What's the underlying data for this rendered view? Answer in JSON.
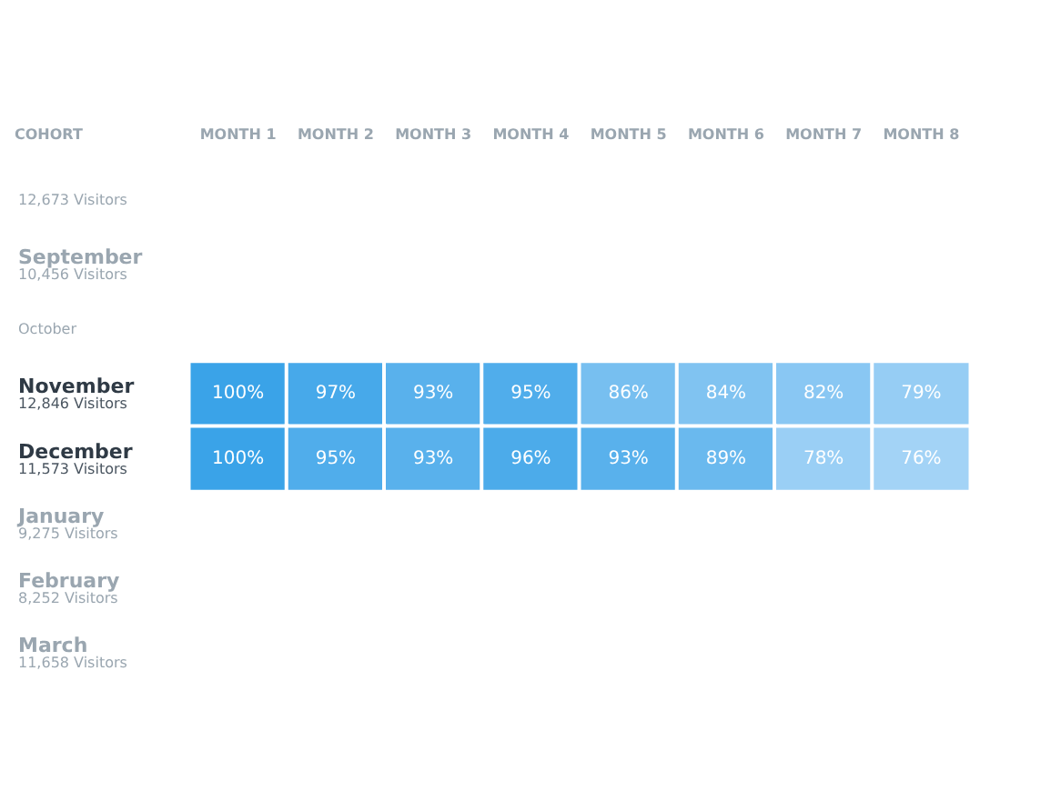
{
  "chart_data": {
    "type": "heatmap",
    "ylabel": "COHORT",
    "categories": [
      "MONTH 1",
      "MONTH 2",
      "MONTH 3",
      "MONTH 4",
      "MONTH 5",
      "MONTH 6",
      "MONTH 7",
      "MONTH 8"
    ],
    "y_categories": [
      "12,673 Visitors",
      "September\n10,456 Visitors",
      "October",
      "November\n12,846 Visitors",
      "December\n11,573 Visitors",
      "January\n9,275 Visitors",
      "February\n8,252 Visitors",
      "March\n11,658 Visitors"
    ],
    "cells": [
      [
        null,
        null,
        null,
        null,
        null,
        null,
        null,
        null
      ],
      [
        null,
        null,
        null,
        null,
        null,
        null,
        null,
        null
      ],
      [
        null,
        null,
        null,
        null,
        null,
        null,
        null,
        null
      ],
      [
        100,
        97,
        93,
        95,
        86,
        84,
        82,
        79
      ],
      [
        100,
        95,
        93,
        96,
        93,
        89,
        78,
        76
      ],
      [
        null,
        null,
        null,
        null,
        null,
        null,
        null,
        null
      ],
      [
        null,
        null,
        null,
        null,
        null,
        null,
        null,
        null
      ],
      [
        null,
        null,
        null,
        null,
        null,
        null,
        null,
        null
      ]
    ],
    "cell_labels": [
      [
        null,
        null,
        null,
        null,
        null,
        null,
        null,
        null
      ],
      [
        null,
        null,
        null,
        null,
        null,
        null,
        null,
        null
      ],
      [
        null,
        null,
        null,
        null,
        null,
        null,
        null,
        null
      ],
      [
        "100%",
        "97%",
        "93%",
        "95%",
        "86%",
        "84%",
        "82%",
        "79%"
      ],
      [
        "100%",
        "95%",
        "93%",
        "96%",
        "93%",
        "89%",
        "78%",
        "76%"
      ],
      [
        null,
        null,
        null,
        null,
        null,
        null,
        null,
        null
      ],
      [
        null,
        null,
        null,
        null,
        null,
        null,
        null,
        null
      ],
      [
        null,
        null,
        null,
        null,
        null,
        null,
        null,
        null
      ]
    ]
  }
}
